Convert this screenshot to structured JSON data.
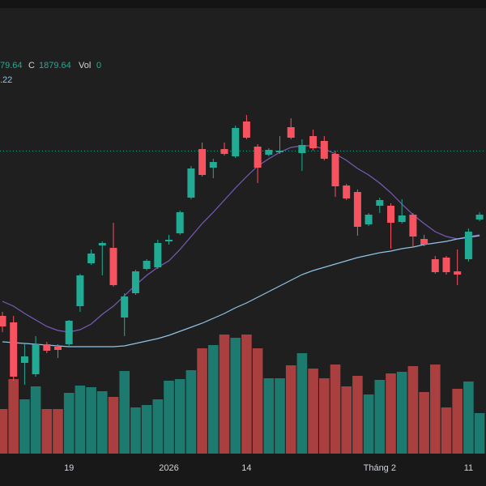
{
  "chart_data": {
    "type": "candlestick",
    "legend": {
      "ohlc_tail": "79.64",
      "close_label": "C",
      "close": 1879.64,
      "vol_label": "Vol",
      "vol": 0,
      "ma_tail": ".22"
    },
    "categories": [
      null,
      null,
      null,
      null,
      null,
      null,
      "19",
      null,
      null,
      null,
      null,
      null,
      null,
      null,
      null,
      "2026",
      null,
      null,
      null,
      null,
      null,
      null,
      "14",
      null,
      null,
      null,
      null,
      null,
      null,
      null,
      null,
      null,
      null,
      null,
      "Tháng 2",
      null,
      null,
      null,
      null,
      null,
      null,
      null,
      "11",
      null
    ],
    "open": [
      1676,
      1668,
      1618,
      1604,
      1641,
      1638,
      1641,
      1688,
      1741,
      1763,
      1760,
      1674,
      1704,
      1734,
      1736,
      1768,
      1778,
      1822,
      1882,
      1859,
      1882,
      1873,
      1916,
      1885,
      1875,
      1878,
      1909,
      1877,
      1898,
      1892,
      1876,
      1837,
      1829,
      1789,
      1812,
      1812,
      1792,
      1801,
      1771,
      1746,
      1748,
      1731,
      1746,
      1795
    ],
    "high": [
      1681,
      1676,
      1641,
      1651,
      1644,
      1641,
      1671,
      1728,
      1758,
      1768,
      1791,
      1704,
      1733,
      1746,
      1770,
      1776,
      1806,
      1861,
      1890,
      1870,
      1890,
      1911,
      1924,
      1888,
      1883,
      1898,
      1920,
      1894,
      1906,
      1898,
      1880,
      1839,
      1832,
      1803,
      1822,
      1815,
      1820,
      1803,
      1776,
      1750,
      1750,
      1758,
      1784,
      1804
    ],
    "low": [
      1656,
      1596,
      1591,
      1601,
      1630,
      1624,
      1638,
      1681,
      1739,
      1726,
      1712,
      1651,
      1702,
      1732,
      1734,
      1764,
      1776,
      1820,
      1848,
      1846,
      1874,
      1871,
      1894,
      1840,
      1873,
      1876,
      1894,
      1855,
      1880,
      1868,
      1823,
      1819,
      1775,
      1787,
      1803,
      1759,
      1790,
      1761,
      1762,
      1728,
      1727,
      1714,
      1743,
      1793
    ],
    "close": [
      1663,
      1601,
      1626,
      1641,
      1633,
      1634,
      1670,
      1726,
      1753,
      1766,
      1714,
      1700,
      1731,
      1744,
      1766,
      1770,
      1804,
      1858,
      1850,
      1866,
      1876,
      1908,
      1896,
      1859,
      1881,
      1880,
      1896,
      1887,
      1883,
      1870,
      1836,
      1821,
      1786,
      1801,
      1819,
      1791,
      1800,
      1774,
      1764,
      1730,
      1730,
      1727,
      1780,
      1801
    ],
    "volume": [
      55,
      92,
      67,
      83,
      55,
      55,
      75,
      84,
      82,
      77,
      70,
      102,
      57,
      60,
      67,
      90,
      92,
      103,
      130,
      134,
      147,
      143,
      147,
      130,
      93,
      93,
      109,
      124,
      105,
      93,
      110,
      83,
      96,
      73,
      91,
      99,
      101,
      108,
      76,
      110,
      57,
      80,
      89,
      50
    ],
    "ma_lines": [
      {
        "color": "#7b5bb8",
        "values": [
          1694,
          1688,
          1679,
          1671,
          1663,
          1658,
          1656,
          1659,
          1666,
          1678,
          1688,
          1701,
          1714,
          1726,
          1736,
          1744,
          1758,
          1774,
          1790,
          1804,
          1819,
          1834,
          1848,
          1861,
          1870,
          1878,
          1884,
          1886,
          1886,
          1882,
          1876,
          1868,
          1858,
          1850,
          1840,
          1828,
          1814,
          1801,
          1790,
          1780,
          1774,
          1771,
          1774,
          1776
        ]
      },
      {
        "color": "#8fc3e6",
        "values": [
          1644,
          1643,
          1642,
          1641,
          1640,
          1639,
          1638,
          1638,
          1638,
          1638,
          1638,
          1639,
          1642,
          1645,
          1648,
          1652,
          1657,
          1662,
          1667,
          1673,
          1679,
          1686,
          1692,
          1699,
          1706,
          1713,
          1720,
          1727,
          1732,
          1736,
          1740,
          1744,
          1748,
          1751,
          1754,
          1756,
          1759,
          1761,
          1764,
          1766,
          1768,
          1771,
          1773,
          1775
        ]
      }
    ],
    "up_color": "#22ab94",
    "down_color": "#f7525f",
    "up_volume_color": "#1d7a6f",
    "down_volume_color": "#a9403f",
    "price_line_color": "#22ab94",
    "ylim": [
      1506,
      2066
    ],
    "vlim": [
      0,
      560
    ]
  }
}
